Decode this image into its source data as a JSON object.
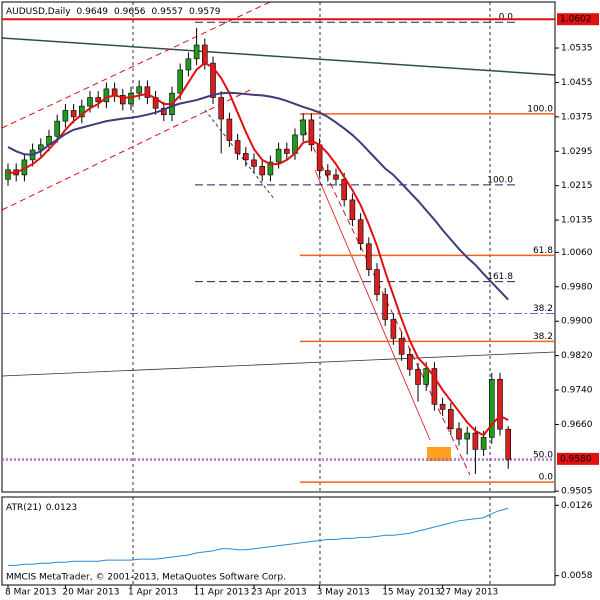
{
  "chart_data": {
    "type": "candlestick",
    "symbol": "AUDUSD,Daily",
    "categories": [
      "8 Mar 2013",
      null,
      null,
      null,
      null,
      null,
      null,
      "20 Mar 2013",
      null,
      null,
      null,
      null,
      null,
      null,
      null,
      "1 Apr 2013",
      null,
      null,
      null,
      null,
      null,
      null,
      null,
      "11 Apr 2013",
      null,
      null,
      null,
      null,
      null,
      null,
      "23 Apr 2013",
      null,
      null,
      null,
      null,
      null,
      null,
      null,
      "3 May 2013",
      null,
      null,
      null,
      null,
      null,
      null,
      null,
      "15 May 2013",
      null,
      null,
      null,
      null,
      null,
      null,
      "27 May 2013",
      null,
      null,
      null,
      null,
      null,
      null,
      null,
      null
    ],
    "open": [
      1.023,
      1.0252,
      1.024,
      1.0275,
      1.0298,
      1.031,
      1.033,
      1.0365,
      1.039,
      1.0375,
      1.04,
      1.042,
      1.041,
      1.044,
      1.0425,
      1.0405,
      1.043,
      1.0445,
      1.042,
      1.0395,
      1.038,
      1.043,
      1.0484,
      1.051,
      1.0542,
      1.05,
      1.042,
      1.037,
      1.032,
      1.029,
      1.0275,
      1.026,
      1.024,
      1.027,
      1.03,
      1.029,
      1.0333,
      1.0368,
      1.031,
      1.025,
      1.024,
      1.023,
      1.0182,
      1.0136,
      1.008,
      1.002,
      0.9962,
      0.9904,
      0.986,
      0.9823,
      0.9788,
      0.9753,
      0.979,
      0.9707,
      0.9695,
      0.965,
      0.9626,
      0.964,
      0.9602,
      0.963,
      0.9765,
      0.9649
    ],
    "high": [
      1.0267,
      1.0267,
      1.029,
      1.0313,
      1.0325,
      1.0345,
      1.038,
      1.0405,
      1.0405,
      1.0415,
      1.0435,
      1.0435,
      1.0455,
      1.0455,
      1.044,
      1.0445,
      1.046,
      1.046,
      1.0435,
      1.041,
      1.0445,
      1.0499,
      1.0525,
      1.0582,
      1.0557,
      1.0515,
      1.0435,
      1.0385,
      1.0335,
      1.0305,
      1.029,
      1.0275,
      1.0285,
      1.0315,
      1.0315,
      1.0348,
      1.0383,
      1.0383,
      1.0325,
      1.0265,
      1.0255,
      1.0245,
      1.0197,
      1.0151,
      1.0095,
      1.0035,
      0.9977,
      0.9919,
      0.9875,
      0.9838,
      0.9803,
      0.9805,
      0.9805,
      0.9722,
      0.971,
      0.9665,
      0.9655,
      0.9655,
      0.9645,
      0.978,
      0.978,
      0.9656
    ],
    "low": [
      1.0215,
      1.0225,
      1.0225,
      1.026,
      1.0283,
      1.0295,
      1.0315,
      1.035,
      1.036,
      1.036,
      1.0385,
      1.0395,
      1.0395,
      1.041,
      1.039,
      1.039,
      1.0415,
      1.0405,
      1.038,
      1.0365,
      1.0365,
      1.0415,
      1.0469,
      1.0495,
      1.0485,
      1.0405,
      1.029,
      1.0305,
      1.0275,
      1.026,
      1.0245,
      1.0225,
      1.0225,
      1.0255,
      1.0275,
      1.0275,
      1.0318,
      1.0295,
      1.0235,
      1.0225,
      1.0215,
      1.0167,
      1.0121,
      1.0065,
      1.0005,
      0.9947,
      0.9889,
      0.9845,
      0.9808,
      0.9773,
      0.9713,
      0.9738,
      0.9692,
      0.968,
      0.9635,
      0.9611,
      0.959,
      0.9545,
      0.9587,
      0.9615,
      0.9634,
      0.9557
    ],
    "close": [
      1.0252,
      1.024,
      1.0275,
      1.0298,
      1.031,
      1.033,
      1.0365,
      1.039,
      1.0375,
      1.04,
      1.042,
      1.041,
      1.044,
      1.0425,
      1.0405,
      1.043,
      1.0445,
      1.042,
      1.0395,
      1.038,
      1.043,
      1.0484,
      1.051,
      1.0542,
      1.05,
      1.042,
      1.037,
      1.032,
      1.029,
      1.0275,
      1.026,
      1.024,
      1.027,
      1.03,
      1.029,
      1.0333,
      1.0368,
      1.031,
      1.025,
      1.024,
      1.023,
      1.0182,
      1.0136,
      1.008,
      1.002,
      0.9962,
      0.9904,
      0.986,
      0.9823,
      0.9788,
      0.9753,
      0.979,
      0.9707,
      0.9695,
      0.965,
      0.9626,
      0.964,
      0.9602,
      0.963,
      0.9765,
      0.9649,
      0.9579
    ],
    "up_color": "#1f9a1f",
    "down_color": "#d42020",
    "overlays": [
      {
        "color": "#e01010",
        "values": [
          1.0245,
          1.0245,
          1.0255,
          1.0265,
          1.028,
          1.03,
          1.032,
          1.0345,
          1.0365,
          1.038,
          1.0395,
          1.0405,
          1.042,
          1.0425,
          1.042,
          1.042,
          1.0425,
          1.0428,
          1.0418,
          1.0405,
          1.0405,
          1.0425,
          1.0455,
          1.0485,
          1.05,
          1.049,
          1.0465,
          1.043,
          1.0385,
          1.034,
          1.03,
          1.0275,
          1.0265,
          1.0265,
          1.0275,
          1.029,
          1.0315,
          1.032,
          1.031,
          1.029,
          1.0265,
          1.0235,
          1.0205,
          1.017,
          1.0125,
          1.0075,
          1.0015,
          0.996,
          0.9905,
          0.9855,
          0.9815,
          0.9795,
          0.977,
          0.974,
          0.9715,
          0.969,
          0.9665,
          0.9645,
          0.9635,
          0.966,
          0.968,
          0.967
        ]
      },
      {
        "color": "#3c3c7a",
        "values": [
          1.0305,
          1.0295,
          1.0288,
          1.0287,
          1.0295,
          1.031,
          1.0322,
          1.0335,
          1.0345,
          1.035,
          1.0355,
          1.036,
          1.0365,
          1.0368,
          1.0371,
          1.0373,
          1.0376,
          1.038,
          1.0385,
          1.0392,
          1.04,
          1.0406,
          1.041,
          1.0414,
          1.042,
          1.0426,
          1.043,
          1.0431,
          1.043,
          1.0428,
          1.0426,
          1.0425,
          1.0422,
          1.0418,
          1.0412,
          1.0405,
          1.0398,
          1.0392,
          1.0385,
          1.0375,
          1.0362,
          1.0348,
          1.0333,
          1.0315,
          1.0295,
          1.0275,
          1.0255,
          1.024,
          1.022,
          1.02,
          1.018,
          1.0158,
          1.0136,
          1.0112,
          1.009,
          1.0068,
          1.0048,
          1.0031,
          1.001,
          0.999,
          0.997,
          0.995
        ]
      }
    ],
    "ylim": [
      0.9503,
      1.0642
    ],
    "yticks": [
      1.0535,
      1.0455,
      1.0375,
      1.0295,
      1.0215,
      1.0135,
      {
        "value": 1.006,
        "label": "1.0060"
      },
      {
        "value": 0.998,
        "label": "0.9980"
      },
      {
        "value": 0.99,
        "label": "0.9900"
      },
      {
        "value": 0.982,
        "label": "0.9820"
      },
      {
        "value": 0.974,
        "label": "0.9740"
      },
      {
        "value": 0.966,
        "label": "0.9660"
      },
      0.9505
    ],
    "current_line": {
      "price": 1.0602,
      "color": "#e01010"
    },
    "price_marker": {
      "value": 0.958,
      "label": "0.9580",
      "color": "#e01010"
    },
    "levels": [
      {
        "price": 1.0382,
        "label": "100.0",
        "color": "#f06020",
        "style": "solid"
      },
      {
        "price": 1.0053,
        "label": "61.8",
        "color": "#f06020",
        "style": "solid"
      },
      {
        "price": 0.9853,
        "label": "38.2",
        "color": "#f06020",
        "style": "solid"
      },
      {
        "price": 0.9526,
        "label": "0.0",
        "color": "#f06020",
        "style": "solid"
      },
      {
        "price": 1.0595,
        "label": "0.0",
        "color": "#20205a",
        "style": "dashed"
      },
      {
        "price": 1.0217,
        "label": "100.0",
        "color": "#20205a",
        "style": "dashed"
      },
      {
        "price": 0.9992,
        "label": "161.8",
        "color": "#20205a",
        "style": "dashed"
      },
      {
        "price": 0.9918,
        "label": "38.2",
        "color": "#4a70c8",
        "style": "dashdot"
      },
      {
        "price": 0.9577,
        "label": "50.0",
        "color": "#7a5ab0",
        "style": "dotted"
      }
    ],
    "atr": {
      "title": "ATR(21)",
      "color": "#2a8ad8",
      "values": [
        0.0068,
        0.0068,
        0.0069,
        0.0069,
        0.007,
        0.007,
        0.0071,
        0.0071,
        0.0072,
        0.0072,
        0.0072,
        0.0072,
        0.0073,
        0.0073,
        0.0073,
        0.0073,
        0.0074,
        0.0074,
        0.0074,
        0.0075,
        0.0076,
        0.0077,
        0.0078,
        0.008,
        0.0081,
        0.0082,
        0.0084,
        0.0084,
        0.0083,
        0.0083,
        0.0084,
        0.0085,
        0.0086,
        0.0087,
        0.0088,
        0.0089,
        0.009,
        0.0091,
        0.0092,
        0.0093,
        0.0093,
        0.0094,
        0.0094,
        0.0095,
        0.0095,
        0.0096,
        0.0097,
        0.0097,
        0.0098,
        0.0099,
        0.0101,
        0.0103,
        0.0105,
        0.0107,
        0.0109,
        0.0111,
        0.0112,
        0.0113,
        0.0114,
        0.0118,
        0.0121,
        0.0123
      ],
      "ylim": [
        0.0049,
        0.0134
      ],
      "yticks": [
        0.0126,
        0.0058
      ]
    },
    "footer": "MMCIS MetaTrader, © 2001-2013, MetaQuotes Software Corp."
  }
}
